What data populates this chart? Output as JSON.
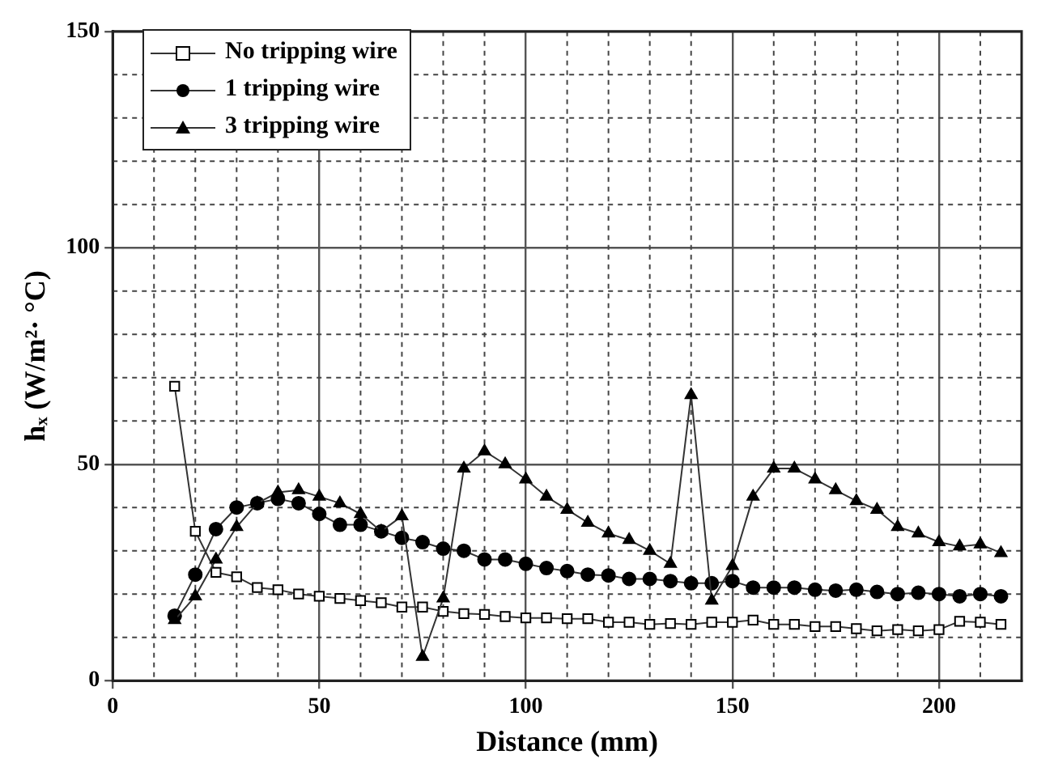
{
  "chart_data": {
    "type": "line",
    "xlabel": "Distance (mm)",
    "ylabel": "hₓ (W/m²· °C)",
    "x": [
      15,
      20,
      25,
      30,
      35,
      40,
      45,
      50,
      55,
      60,
      65,
      70,
      75,
      80,
      85,
      90,
      95,
      100,
      105,
      110,
      115,
      120,
      125,
      130,
      135,
      140,
      145,
      150,
      155,
      160,
      165,
      170,
      175,
      180,
      185,
      190,
      195,
      200,
      205,
      210,
      215
    ],
    "series": [
      {
        "name": "No tripping wire",
        "color": "#000000",
        "marker": "square",
        "values": [
          68,
          34.5,
          25,
          24,
          21.5,
          21,
          20,
          19.5,
          19,
          18.5,
          18,
          17,
          17,
          16,
          15.5,
          15.3,
          14.8,
          14.5,
          14.5,
          14.3,
          14.3,
          13.5,
          13.5,
          13,
          13.2,
          13,
          13.5,
          13.5,
          14,
          13,
          13,
          12.5,
          12.5,
          12,
          11.5,
          11.8,
          11.5,
          11.8,
          13.7,
          13.5,
          13
        ]
      },
      {
        "name": "1 tripping wire",
        "color": "#000000",
        "marker": "circle",
        "values": [
          15,
          24.5,
          35,
          40,
          41,
          42,
          41,
          38.5,
          36,
          36,
          34.5,
          33,
          32,
          30.5,
          30,
          28,
          28,
          27,
          26,
          25.3,
          24.5,
          24.3,
          23.5,
          23.5,
          23,
          22.5,
          22.5,
          23,
          21.5,
          21.5,
          21.5,
          21,
          20.8,
          21,
          20.5,
          20,
          20.3,
          20,
          19.5,
          20,
          19.5
        ]
      },
      {
        "name": "3 tripping wire",
        "color": "#000000",
        "marker": "triangle",
        "values": [
          14,
          19.5,
          28,
          35.5,
          41,
          43.5,
          44,
          42.5,
          41,
          38.5,
          34.5,
          38,
          5.5,
          19,
          49,
          53,
          50,
          46.5,
          42.5,
          39.5,
          36.5,
          34,
          32.5,
          30,
          27,
          66,
          18.5,
          26.5,
          42.5,
          49,
          49,
          46.5,
          44,
          41.5,
          39.5,
          35.5,
          34,
          32,
          31,
          31.5,
          29.5
        ]
      }
    ],
    "xlim": [
      0,
      220
    ],
    "xticks": [
      0,
      {
        "value": 10,
        "label": null
      },
      {
        "value": 20,
        "label": null
      },
      {
        "value": 30,
        "label": null
      },
      {
        "value": 40,
        "label": null
      },
      50,
      {
        "value": 60,
        "label": null
      },
      {
        "value": 70,
        "label": null
      },
      {
        "value": 80,
        "label": null
      },
      {
        "value": 90,
        "label": null
      },
      100,
      {
        "value": 110,
        "label": null
      },
      {
        "value": 120,
        "label": null
      },
      {
        "value": 130,
        "label": null
      },
      {
        "value": 140,
        "label": null
      },
      150,
      {
        "value": 160,
        "label": null
      },
      {
        "value": 170,
        "label": null
      },
      {
        "value": 180,
        "label": null
      },
      {
        "value": 190,
        "label": null
      },
      200,
      {
        "value": 210,
        "label": null
      },
      {
        "value": 220,
        "label": null
      }
    ],
    "ylim": [
      0,
      150
    ],
    "yticks": [
      0,
      {
        "value": 10,
        "label": null
      },
      {
        "value": 20,
        "label": null
      },
      {
        "value": 30,
        "label": null
      },
      {
        "value": 40,
        "label": null
      },
      50,
      {
        "value": 60,
        "label": null
      },
      {
        "value": 70,
        "label": null
      },
      {
        "value": 80,
        "label": null
      },
      {
        "value": 90,
        "label": null
      },
      100,
      {
        "value": 110,
        "label": null
      },
      {
        "value": 120,
        "label": null
      },
      {
        "value": 130,
        "label": null
      },
      {
        "value": 140,
        "label": null
      },
      150
    ],
    "grid": true,
    "legend": "top left",
    "line_style": "solid"
  }
}
